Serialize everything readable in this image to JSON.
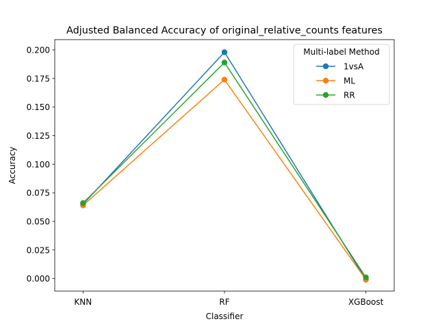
{
  "chart_data": {
    "type": "line",
    "title": "Adjusted Balanced Accuracy of original_relative_counts features",
    "xlabel": "Classifier",
    "ylabel": "Accuracy",
    "categories": [
      "KNN",
      "RF",
      "XGBoost"
    ],
    "ylim": [
      -0.011,
      0.209
    ],
    "yticks": [
      0.0,
      0.025,
      0.05,
      0.075,
      0.1,
      0.125,
      0.15,
      0.175,
      0.2
    ],
    "ytick_labels": [
      "0.000",
      "0.025",
      "0.050",
      "0.075",
      "0.100",
      "0.125",
      "0.150",
      "0.175",
      "0.200"
    ],
    "grid": false,
    "legend": {
      "title": "Multi-label Method",
      "placement": "top-right"
    },
    "series": [
      {
        "name": "1vsA",
        "color": "#1f77b4",
        "values": [
          0.065,
          0.198,
          -0.001
        ]
      },
      {
        "name": "ML",
        "color": "#ff7f0e",
        "values": [
          0.064,
          0.174,
          -0.001
        ]
      },
      {
        "name": "RR",
        "color": "#2ca02c",
        "values": [
          0.066,
          0.189,
          0.001
        ]
      }
    ]
  }
}
